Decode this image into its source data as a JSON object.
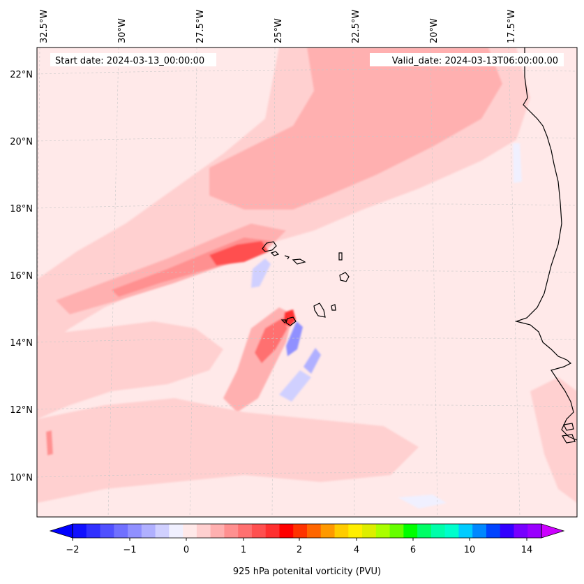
{
  "map": {
    "start_label": "Start date: 2024-03-13_00:00:00",
    "valid_label": "Valid_date: 2024-03-13T06:00:00.00",
    "lon_labels": [
      "32.5°W",
      "30°W",
      "27.5°W",
      "25°W",
      "22.5°W",
      "20°W",
      "17.5°W"
    ],
    "lat_labels": [
      "22°N",
      "20°N",
      "18°N",
      "16°N",
      "14°N",
      "12°N",
      "10°N"
    ],
    "background_color": "#ffe9e9"
  },
  "colorbar": {
    "label": "925 hPa potenital vorticity (PVU)",
    "tick_labels": [
      "−2",
      "−1",
      "0",
      "1",
      "2",
      "4",
      "6",
      "10",
      "14"
    ],
    "colors": [
      "#1010ff",
      "#3030ff",
      "#5050ff",
      "#7070ff",
      "#9090ff",
      "#b0b0ff",
      "#d0d0ff",
      "#f0f0ff",
      "#ffe9e9",
      "#ffd0d0",
      "#ffb0b0",
      "#ff9090",
      "#ff7070",
      "#ff5050",
      "#ff3030",
      "#ff0000",
      "#ff3300",
      "#ff6600",
      "#ff9900",
      "#ffcc00",
      "#ffee00",
      "#ddee00",
      "#aaff00",
      "#66ff00",
      "#00ff00",
      "#00ff66",
      "#00ffaa",
      "#00ffcc",
      "#00ccff",
      "#0088ff",
      "#0044ff",
      "#3300ff",
      "#7700ff",
      "#9900ff"
    ],
    "under_color": "#0000ff",
    "over_color": "#cc00ff"
  }
}
